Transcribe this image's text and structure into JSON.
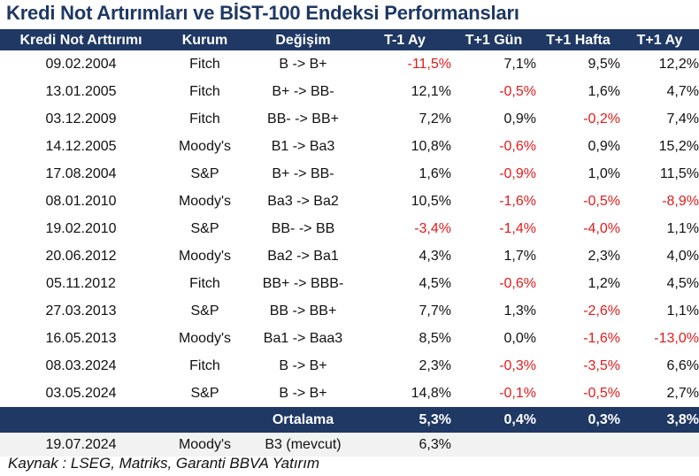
{
  "title": "Kredi Not Artırımları ve BİST-100 Endeksi Performansları",
  "headers": {
    "date": "Kredi Not Arttırımı",
    "agency": "Kurum",
    "change": "Değişim",
    "t_minus_1m": "T-1 Ay",
    "t_plus_1d": "T+1 Gün",
    "t_plus_1w": "T+1 Hafta",
    "t_plus_1m": "T+1 Ay"
  },
  "rows": [
    {
      "date": "09.02.2004",
      "agency": "Fitch",
      "change": "B -> B+",
      "t_minus_1m": "-11,5%",
      "t_plus_1d": "7,1%",
      "t_plus_1w": "9,5%",
      "t_plus_1m": "12,2%"
    },
    {
      "date": "13.01.2005",
      "agency": "Fitch",
      "change": "B+ -> BB-",
      "t_minus_1m": "12,1%",
      "t_plus_1d": "-0,5%",
      "t_plus_1w": "1,6%",
      "t_plus_1m": "4,7%"
    },
    {
      "date": "03.12.2009",
      "agency": "Fitch",
      "change": "BB- -> BB+",
      "t_minus_1m": "7,2%",
      "t_plus_1d": "0,9%",
      "t_plus_1w": "-0,2%",
      "t_plus_1m": "7,4%"
    },
    {
      "date": "14.12.2005",
      "agency": "Moody's",
      "change": "B1 -> Ba3",
      "t_minus_1m": "10,8%",
      "t_plus_1d": "-0,6%",
      "t_plus_1w": "0,9%",
      "t_plus_1m": "15,2%"
    },
    {
      "date": "17.08.2004",
      "agency": "S&P",
      "change": "B+ -> BB-",
      "t_minus_1m": "1,6%",
      "t_plus_1d": "-0,9%",
      "t_plus_1w": "1,0%",
      "t_plus_1m": "11,5%"
    },
    {
      "date": "08.01.2010",
      "agency": "Moody's",
      "change": "Ba3 -> Ba2",
      "t_minus_1m": "10,5%",
      "t_plus_1d": "-1,6%",
      "t_plus_1w": "-0,5%",
      "t_plus_1m": "-8,9%"
    },
    {
      "date": "19.02.2010",
      "agency": "S&P",
      "change": "BB- -> BB",
      "t_minus_1m": "-3,4%",
      "t_plus_1d": "-1,4%",
      "t_plus_1w": "-4,0%",
      "t_plus_1m": "1,1%"
    },
    {
      "date": "20.06.2012",
      "agency": "Moody's",
      "change": "Ba2 -> Ba1",
      "t_minus_1m": "4,3%",
      "t_plus_1d": "1,7%",
      "t_plus_1w": "2,3%",
      "t_plus_1m": "4,0%"
    },
    {
      "date": "05.11.2012",
      "agency": "Fitch",
      "change": "BB+ -> BBB-",
      "t_minus_1m": "4,5%",
      "t_plus_1d": "-0,6%",
      "t_plus_1w": "1,2%",
      "t_plus_1m": "4,5%"
    },
    {
      "date": "27.03.2013",
      "agency": "S&P",
      "change": "BB -> BB+",
      "t_minus_1m": "7,7%",
      "t_plus_1d": "1,3%",
      "t_plus_1w": "-2,6%",
      "t_plus_1m": "1,1%"
    },
    {
      "date": "16.05.2013",
      "agency": "Moody's",
      "change": "Ba1 -> Baa3",
      "t_minus_1m": "8,5%",
      "t_plus_1d": "0,0%",
      "t_plus_1w": "-1,6%",
      "t_plus_1m": "-13,0%"
    },
    {
      "date": "08.03.2024",
      "agency": "Fitch",
      "change": "B -> B+",
      "t_minus_1m": "2,3%",
      "t_plus_1d": "-0,3%",
      "t_plus_1w": "-3,5%",
      "t_plus_1m": "6,6%"
    },
    {
      "date": "03.05.2024",
      "agency": "S&P",
      "change": "B -> B+",
      "t_minus_1m": "14,8%",
      "t_plus_1d": "-0,1%",
      "t_plus_1w": "-0,5%",
      "t_plus_1m": "2,7%"
    }
  ],
  "average": {
    "label": "Ortalama",
    "t_minus_1m": "5,3%",
    "t_plus_1d": "0,4%",
    "t_plus_1w": "0,3%",
    "t_plus_1m": "3,8%"
  },
  "current": {
    "date": "19.07.2024",
    "agency": "Moody's",
    "change": "B3 (mevcut)",
    "t_minus_1m": "6,3%"
  },
  "source": "Kaynak : LSEG, Matriks, Garanti BBVA Yatırım",
  "colors": {
    "header_bg": "#1f3864",
    "negative": "#e31b1b",
    "title": "#1f3864"
  }
}
